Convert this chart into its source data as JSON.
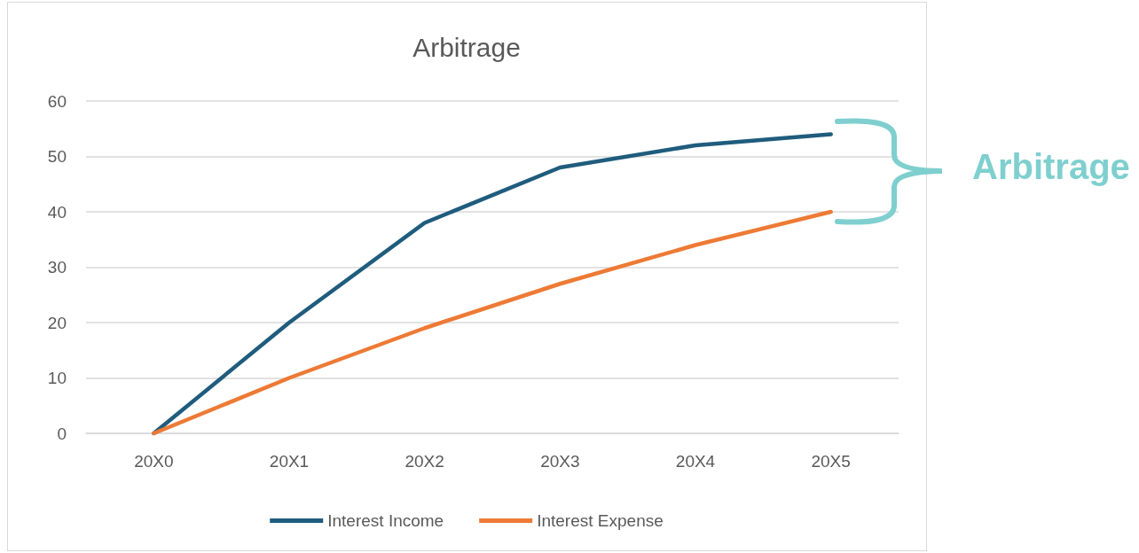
{
  "chart_data": {
    "type": "line",
    "title": "Arbitrage",
    "categories": [
      "20X0",
      "20X1",
      "20X2",
      "20X3",
      "20X4",
      "20X5"
    ],
    "series": [
      {
        "name": "Interest Income",
        "color": "#1f5c7d",
        "values": [
          0,
          20,
          38,
          48,
          52,
          54
        ]
      },
      {
        "name": "Interest Expense",
        "color": "#ed7a35",
        "values": [
          0,
          10,
          19,
          27,
          34,
          40
        ]
      }
    ],
    "ylim": [
      0,
      60
    ],
    "yticks": [
      0,
      10,
      20,
      30,
      40,
      50,
      60
    ],
    "grid": "y",
    "legend": "bottom",
    "marker": "none",
    "line_style": "solid",
    "annotations": [
      "Arbitrage"
    ]
  }
}
